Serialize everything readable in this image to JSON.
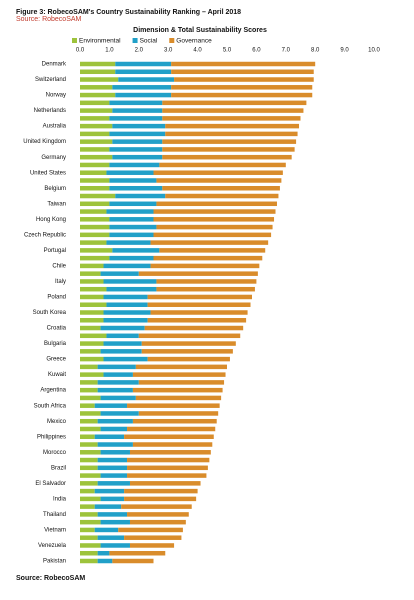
{
  "figure_title": "Figure 3: RobecoSAM's Country Sustainability Ranking – April 2018",
  "note": "Source: RobecoSAM",
  "source": "Source: RobecoSAM",
  "chart_data": {
    "type": "stacked_barh",
    "title": "Dimension & Total Sustainability Scores",
    "categories": [
      "Denmark",
      null,
      "Switzerland",
      null,
      "Norway",
      null,
      "Netherlands",
      null,
      "Australia",
      null,
      "United Kingdom",
      null,
      "Germany",
      null,
      "United States",
      null,
      "Belgium",
      null,
      "Taiwan",
      null,
      "Hong Kong",
      null,
      "Czech Republic",
      null,
      "Portugal",
      null,
      "Chile",
      null,
      "Italy",
      null,
      "Poland",
      null,
      "South Korea",
      null,
      "Croatia",
      null,
      "Bulgaria",
      null,
      "Greece",
      null,
      "Kuwait",
      null,
      "Argentina",
      null,
      "South Africa",
      null,
      "Mexico",
      null,
      "Philippines",
      null,
      "Morocco",
      null,
      "Brazil",
      null,
      "El Salvador",
      null,
      "India",
      null,
      "Thailand",
      null,
      "Vietnam",
      null,
      "Venezuela",
      null,
      "Pakistan"
    ],
    "series": [
      {
        "name": "Environmental",
        "color": "#9dc33b",
        "values": [
          1.2,
          1.2,
          1.3,
          1.1,
          1.2,
          1.0,
          1.1,
          1.0,
          1.1,
          1.0,
          1.1,
          1.0,
          1.1,
          1.0,
          0.9,
          1.0,
          1.0,
          1.2,
          1.0,
          0.9,
          1.0,
          1.0,
          1.0,
          0.9,
          1.1,
          1.0,
          0.8,
          0.7,
          0.8,
          0.9,
          0.8,
          0.9,
          0.8,
          0.8,
          0.7,
          0.9,
          0.8,
          0.7,
          0.8,
          0.6,
          0.8,
          0.6,
          0.6,
          0.7,
          0.5,
          0.7,
          0.6,
          0.7,
          0.5,
          0.6,
          0.7,
          0.6,
          0.6,
          0.7,
          0.6,
          0.5,
          0.7,
          0.5,
          0.6,
          0.7,
          0.5,
          0.6,
          0.7,
          0.6,
          0.6
        ]
      },
      {
        "name": "Social",
        "color": "#21a0c8",
        "values": [
          1.9,
          1.9,
          1.9,
          2.0,
          1.9,
          1.8,
          1.7,
          1.8,
          1.8,
          1.9,
          1.7,
          1.8,
          1.7,
          1.7,
          1.6,
          1.6,
          1.8,
          1.7,
          1.6,
          1.6,
          1.5,
          1.6,
          1.5,
          1.5,
          1.6,
          1.5,
          1.6,
          1.3,
          1.8,
          1.7,
          1.5,
          1.4,
          1.6,
          1.5,
          1.5,
          1.1,
          1.3,
          1.4,
          1.5,
          1.3,
          1.0,
          1.4,
          1.2,
          1.2,
          1.1,
          1.3,
          1.2,
          0.9,
          1.0,
          1.2,
          1.0,
          1.0,
          1.0,
          0.9,
          1.1,
          1.0,
          0.8,
          0.9,
          1.0,
          1.0,
          0.8,
          0.9,
          1.0,
          0.4,
          0.5
        ]
      },
      {
        "name": "Governance",
        "color": "#d98c2b",
        "values": [
          4.9,
          4.85,
          4.75,
          4.8,
          4.8,
          4.9,
          4.8,
          4.7,
          4.55,
          4.5,
          4.55,
          4.5,
          4.4,
          4.3,
          4.4,
          4.25,
          4.0,
          3.85,
          4.1,
          4.15,
          4.1,
          3.95,
          4.0,
          4.0,
          3.6,
          3.7,
          3.7,
          4.05,
          3.4,
          3.35,
          3.55,
          3.5,
          3.3,
          3.35,
          3.35,
          3.45,
          3.2,
          3.1,
          2.8,
          3.1,
          3.15,
          2.9,
          3.05,
          2.9,
          3.15,
          2.7,
          2.85,
          3.0,
          3.05,
          2.7,
          2.75,
          2.8,
          2.75,
          2.7,
          2.4,
          2.5,
          2.45,
          2.4,
          2.1,
          1.9,
          2.2,
          1.95,
          1.5,
          1.9,
          1.4
        ]
      }
    ],
    "xlim": [
      0,
      10
    ],
    "xticks": [
      {
        "value": 0,
        "label": "0.0"
      },
      {
        "value": 1,
        "label": "1.0"
      },
      {
        "value": 2,
        "label": "2.0"
      },
      {
        "value": 3,
        "label": "3.0"
      },
      {
        "value": 4,
        "label": "4.0"
      },
      {
        "value": 5,
        "label": "5.0"
      },
      {
        "value": 6,
        "label": "6.0"
      },
      {
        "value": 7,
        "label": "7.0"
      },
      {
        "value": 8,
        "label": "8.0"
      },
      {
        "value": 9,
        "label": "9.0"
      },
      {
        "value": 10,
        "label": "10.0"
      }
    ],
    "legend": "top"
  }
}
